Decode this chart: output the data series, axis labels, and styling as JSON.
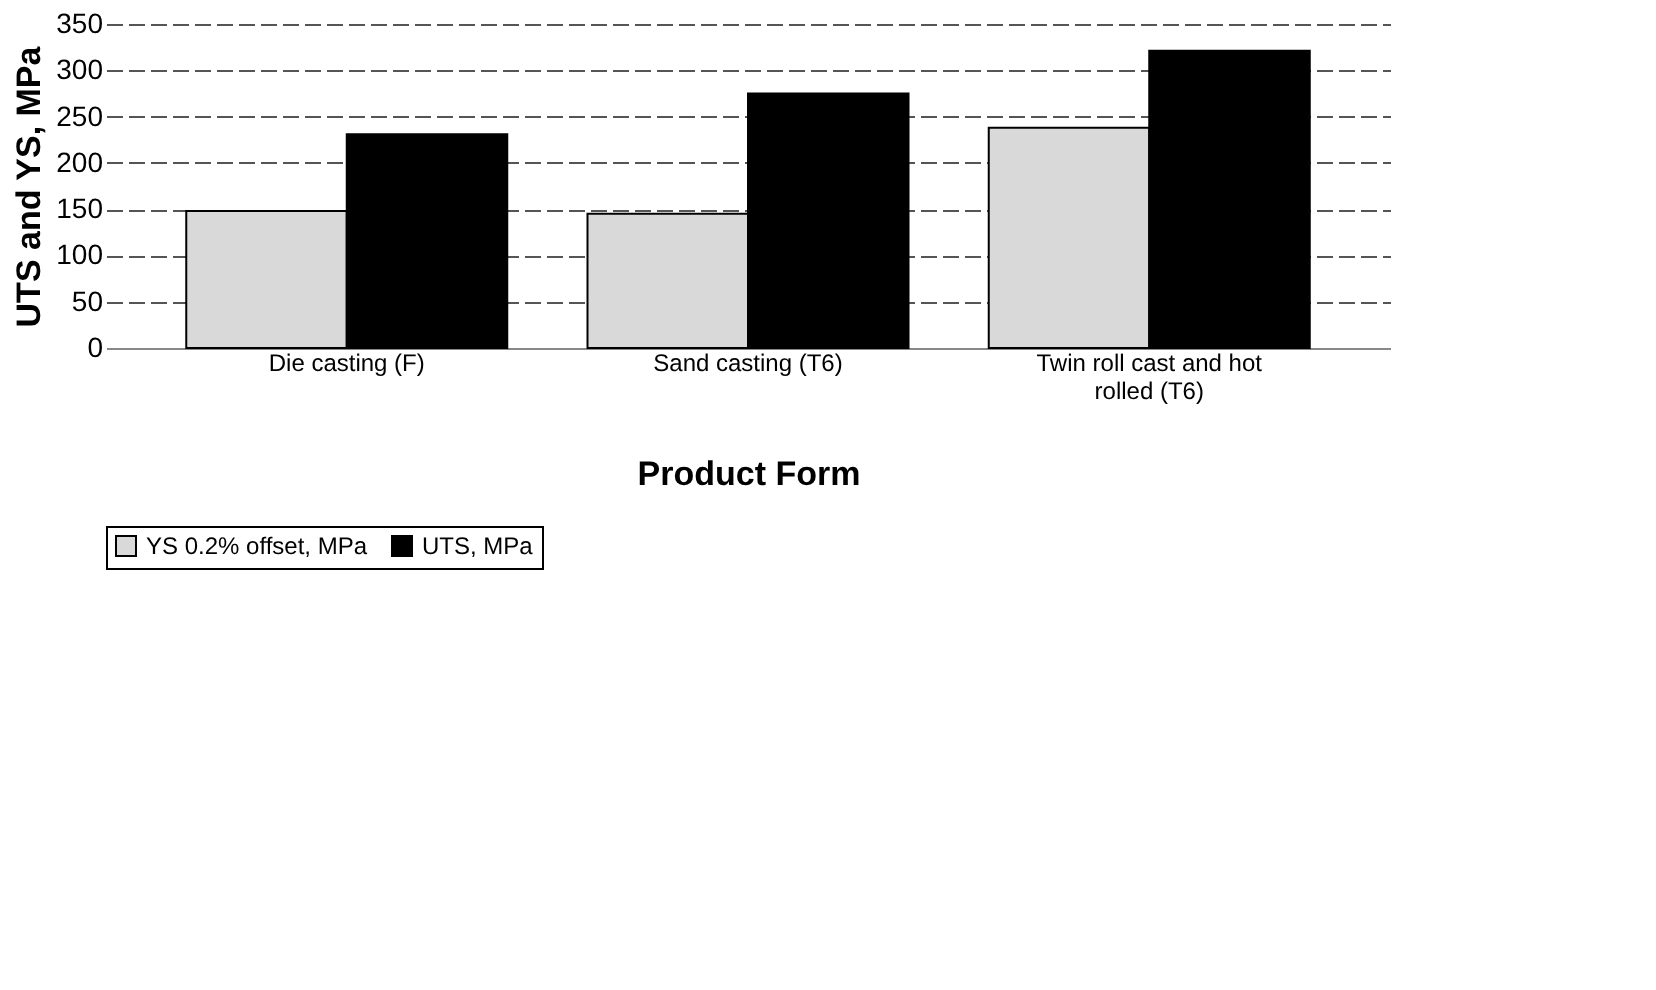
{
  "chart_data": {
    "type": "bar",
    "xlabel": "Product Form",
    "ylabel": "UTS and YS, MPa",
    "categories": [
      "Die casting (F)",
      "Sand casting (T6)",
      "Twin roll cast and hot rolled (T6)"
    ],
    "series": [
      {
        "name": "YS 0.2% offset, MPa",
        "color": "#d9d9d9",
        "values": [
          148,
          145,
          238
        ]
      },
      {
        "name": "UTS, MPa",
        "color": "#000000",
        "values": [
          231,
          275,
          321
        ]
      }
    ],
    "ylim": [
      0,
      350
    ],
    "yticks": [
      0,
      50,
      100,
      150,
      200,
      250,
      300,
      350
    ],
    "grid": "y",
    "legend": "bottom"
  }
}
